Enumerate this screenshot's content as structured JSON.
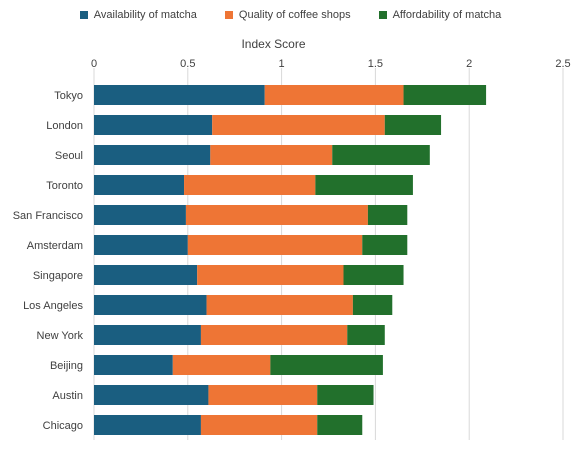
{
  "chart_data": {
    "type": "bar",
    "orientation": "horizontal",
    "stacked": true,
    "title": "",
    "xlabel": "Index Score",
    "ylabel": "",
    "xlim": [
      0,
      2.5
    ],
    "x_ticks": [
      "0",
      "0.5",
      "1",
      "1.5",
      "2",
      "2.5"
    ],
    "grid": "vertical",
    "legend_position": "top",
    "categories": [
      "Tokyo",
      "London",
      "Seoul",
      "Toronto",
      "San Francisco",
      "Amsterdam",
      "Singapore",
      "Los Angeles",
      "New York",
      "Beijing",
      "Austin",
      "Chicago"
    ],
    "series": [
      {
        "name": "Availability of matcha",
        "color": "#1a5e80",
        "values": [
          0.91,
          0.63,
          0.62,
          0.48,
          0.49,
          0.5,
          0.55,
          0.6,
          0.57,
          0.42,
          0.61,
          0.57
        ]
      },
      {
        "name": "Quality of coffee shops",
        "color": "#ee7535",
        "values": [
          0.74,
          0.92,
          0.65,
          0.7,
          0.97,
          0.93,
          0.78,
          0.78,
          0.78,
          0.52,
          0.58,
          0.62
        ]
      },
      {
        "name": "Affordability of matcha",
        "color": "#22702c",
        "values": [
          0.44,
          0.3,
          0.52,
          0.52,
          0.21,
          0.24,
          0.32,
          0.21,
          0.2,
          0.6,
          0.3,
          0.24
        ]
      }
    ]
  }
}
